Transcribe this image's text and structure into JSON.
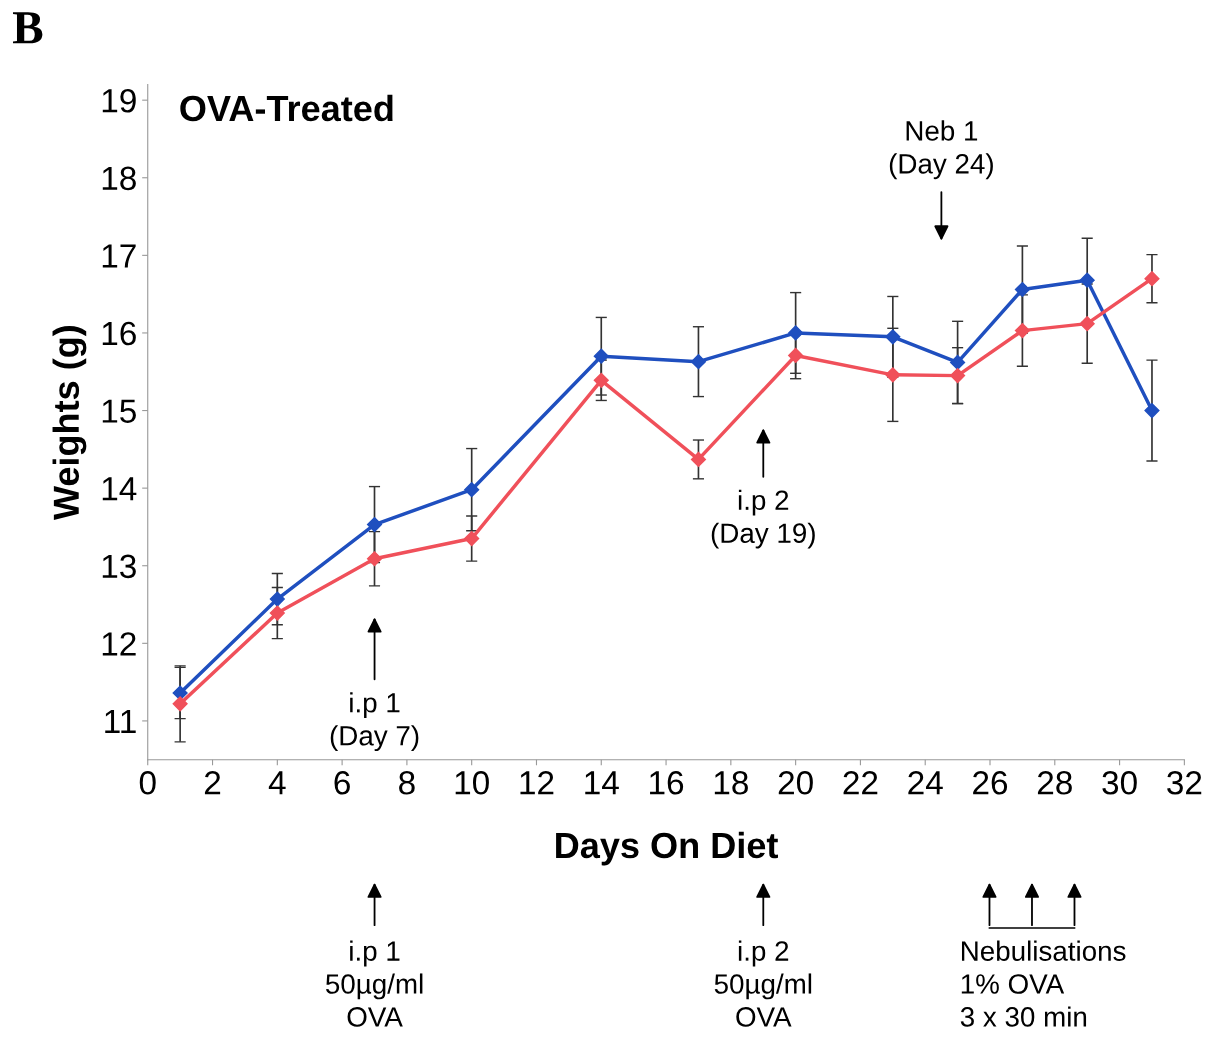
{
  "chart_data": {
    "type": "line",
    "title": "OVA-Treated",
    "xlabel": "Days On Diet",
    "ylabel": "Weights (g)",
    "x": [
      1,
      4,
      7,
      10,
      14,
      17,
      20,
      23,
      25,
      27,
      29,
      31
    ],
    "series": [
      {
        "color": "#1f4fbf",
        "values": [
          11.36,
          12.57,
          13.53,
          13.98,
          15.7,
          15.63,
          16.0,
          15.95,
          15.62,
          16.56,
          16.68,
          15.0
        ],
        "errors": [
          0.33,
          0.33,
          0.49,
          0.53,
          0.5,
          0.45,
          0.52,
          0.52,
          0.53,
          0.56,
          0.54,
          0.65
        ]
      },
      {
        "color": "#f0505a",
        "values": [
          11.22,
          12.39,
          13.09,
          13.35,
          15.39,
          14.37,
          15.71,
          15.46,
          15.45,
          16.03,
          16.12,
          16.7
        ],
        "errors": [
          0.49,
          0.33,
          0.35,
          0.29,
          0.26,
          0.25,
          0.3,
          0.6,
          0.36,
          0.46,
          0.51,
          0.31
        ]
      }
    ],
    "xlim": [
      0,
      32
    ],
    "xticks": [
      0,
      2,
      4,
      6,
      8,
      10,
      12,
      14,
      16,
      18,
      20,
      22,
      24,
      26,
      28,
      30,
      32
    ],
    "ylim": [
      10.5,
      19.2
    ],
    "yticks": [
      11,
      12,
      13,
      14,
      15,
      16,
      17,
      18,
      19
    ],
    "marker": "diamond",
    "line_style": "solid",
    "grid": false,
    "legend": false,
    "annotations": [
      "B",
      "i.p 1\n(Day 7)",
      "i.p 2\n(Day 19)",
      "Neb 1\n(Day 24)",
      "i.p 1\n50µg/ml\nOVA",
      "i.p 2\n50µg/ml\nOVA",
      "Nebulisations\n1% OVA\n3 x 30 min"
    ]
  }
}
